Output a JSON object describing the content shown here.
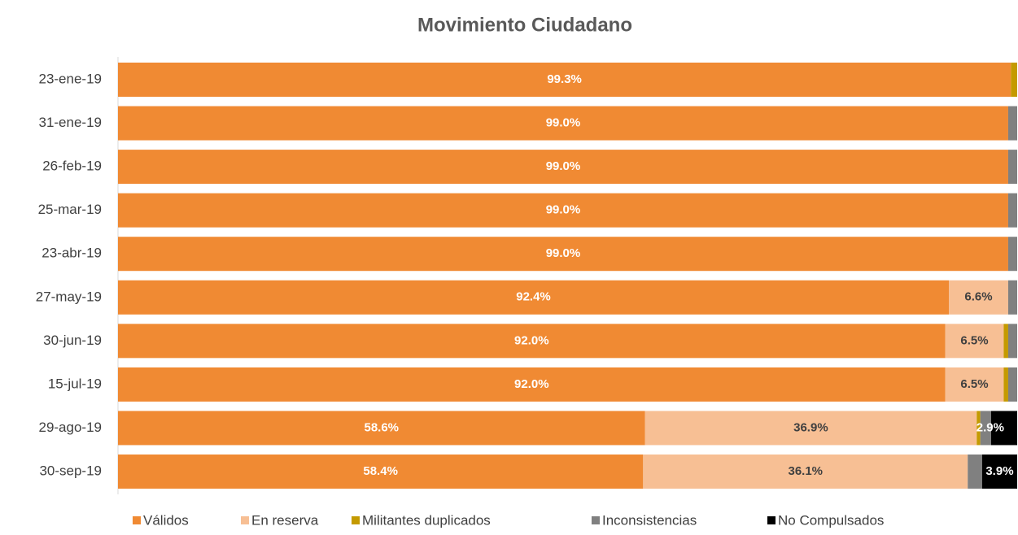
{
  "chart_data": {
    "type": "stacked_bar_horizontal",
    "title": "Movimiento Ciudadano",
    "categories": [
      "23-ene-19",
      "31-ene-19",
      "26-feb-19",
      "25-mar-19",
      "23-abr-19",
      "27-may-19",
      "30-jun-19",
      "15-jul-19",
      "29-ago-19",
      "30-sep-19"
    ],
    "xlim": [
      0,
      100
    ],
    "series": [
      {
        "name": "Válidos",
        "color": "#f08a33",
        "values": [
          99.3,
          99.0,
          99.0,
          99.0,
          99.0,
          92.4,
          92.0,
          92.0,
          58.6,
          58.4
        ],
        "value_labels": [
          "99.3%",
          "99.0%",
          "99.0%",
          "99.0%",
          "99.0%",
          "92.4%",
          "92.0%",
          "92.0%",
          "58.6%",
          "58.4%"
        ]
      },
      {
        "name": "En reserva",
        "color": "#f7bf94",
        "values": [
          0,
          0,
          0,
          0,
          0,
          6.6,
          6.5,
          6.5,
          36.9,
          36.1
        ],
        "value_labels": [
          null,
          null,
          null,
          null,
          null,
          "6.6%",
          "6.5%",
          "6.5%",
          "36.9%",
          "36.1%"
        ]
      },
      {
        "name": "Militantes duplicados",
        "color": "#c49a00",
        "values": [
          0.7,
          0,
          0,
          0,
          0,
          0,
          0.5,
          0.5,
          0.4,
          0
        ]
      },
      {
        "name": "Inconsistencias",
        "color": "#808080",
        "values": [
          0,
          1.0,
          1.0,
          1.0,
          1.0,
          1.0,
          1.0,
          1.0,
          1.2,
          1.6
        ]
      },
      {
        "name": "No Compulsados",
        "color": "#000000",
        "values": [
          0,
          0,
          0,
          0,
          0,
          0,
          0,
          0,
          2.9,
          3.9
        ],
        "value_labels": [
          null,
          null,
          null,
          null,
          null,
          null,
          null,
          null,
          "2.9%",
          "3.9%"
        ]
      }
    ]
  }
}
